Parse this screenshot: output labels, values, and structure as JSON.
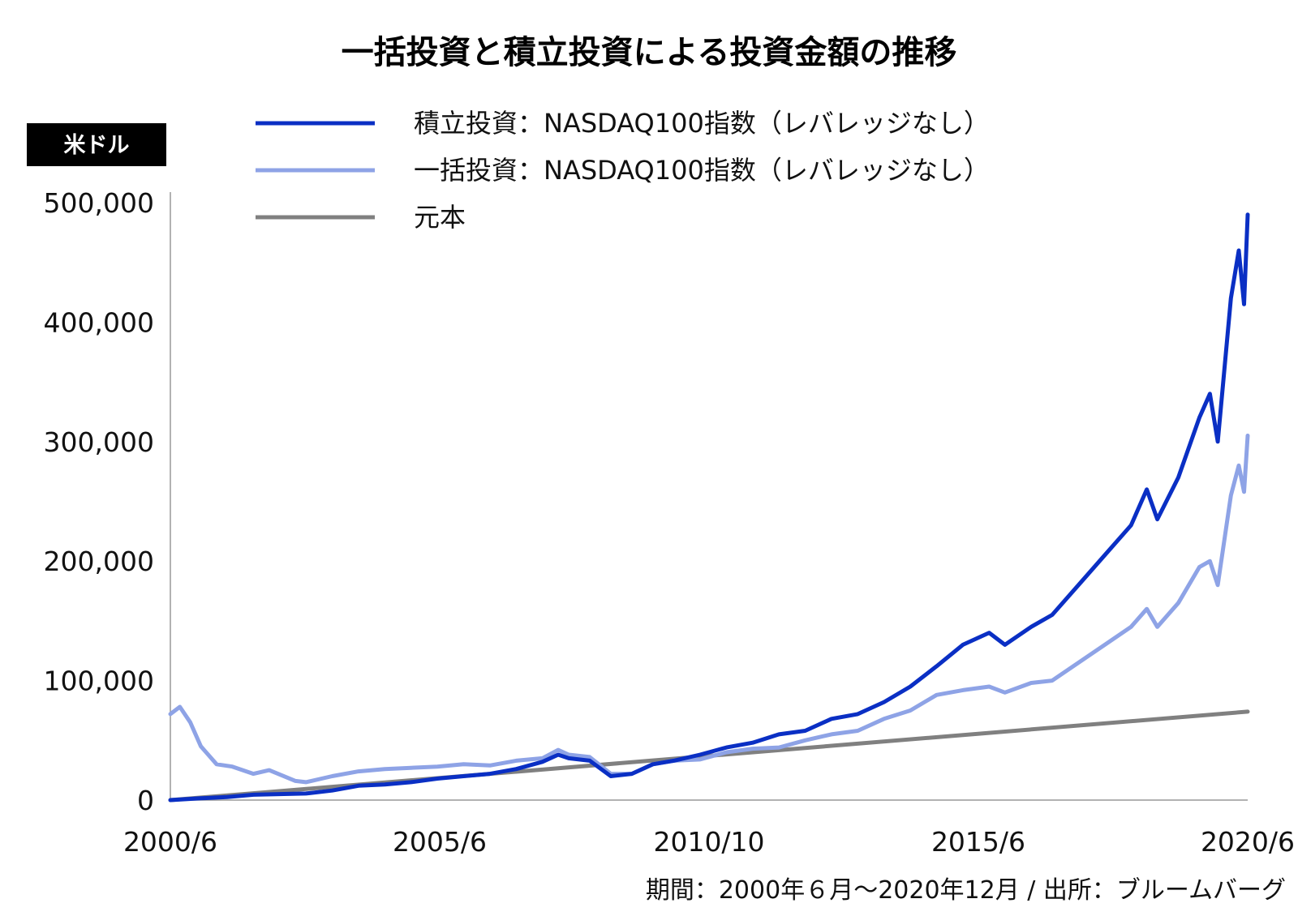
{
  "chart_data": {
    "type": "line",
    "title": "一括投資と積立投資による投資金額の推移",
    "unit_label": "米ドル",
    "source": "期間：2000年６月〜2020年12月 / 出所：ブルームバーグ",
    "x_tick_labels": [
      "2000/6",
      "2005/6",
      "2010/10",
      "2015/6",
      "2020/6"
    ],
    "y_tick_labels": [
      "500,000",
      "400,000",
      "300,000",
      "200,000",
      "100,000",
      "0"
    ],
    "x_range": [
      2000.42,
      2020.92
    ],
    "ylim": [
      0,
      500000
    ],
    "legend_position": "top",
    "series": [
      {
        "name": "積立投資：NASDAQ100指数（レバレッジなし）",
        "color": "#0a2fc4",
        "points": [
          [
            2000.42,
            0
          ],
          [
            2001.0,
            1500
          ],
          [
            2001.5,
            2500
          ],
          [
            2002.0,
            4500
          ],
          [
            2002.5,
            5000
          ],
          [
            2003.0,
            5500
          ],
          [
            2003.5,
            8000
          ],
          [
            2004.0,
            12000
          ],
          [
            2004.5,
            13000
          ],
          [
            2005.0,
            15000
          ],
          [
            2005.5,
            18000
          ],
          [
            2006.0,
            20000
          ],
          [
            2006.5,
            22000
          ],
          [
            2007.0,
            26000
          ],
          [
            2007.5,
            32000
          ],
          [
            2007.8,
            38000
          ],
          [
            2008.0,
            35000
          ],
          [
            2008.4,
            33000
          ],
          [
            2008.8,
            20000
          ],
          [
            2009.2,
            22000
          ],
          [
            2009.6,
            30000
          ],
          [
            2010.0,
            33000
          ],
          [
            2010.5,
            38000
          ],
          [
            2011.0,
            44000
          ],
          [
            2011.5,
            48000
          ],
          [
            2012.0,
            55000
          ],
          [
            2012.5,
            58000
          ],
          [
            2013.0,
            68000
          ],
          [
            2013.5,
            72000
          ],
          [
            2014.0,
            82000
          ],
          [
            2014.5,
            95000
          ],
          [
            2015.0,
            112000
          ],
          [
            2015.5,
            130000
          ],
          [
            2016.0,
            140000
          ],
          [
            2016.3,
            130000
          ],
          [
            2016.8,
            145000
          ],
          [
            2017.2,
            155000
          ],
          [
            2017.8,
            185000
          ],
          [
            2018.2,
            205000
          ],
          [
            2018.7,
            230000
          ],
          [
            2019.0,
            260000
          ],
          [
            2019.2,
            235000
          ],
          [
            2019.6,
            270000
          ],
          [
            2020.0,
            320000
          ],
          [
            2020.2,
            340000
          ],
          [
            2020.35,
            300000
          ],
          [
            2020.6,
            420000
          ],
          [
            2020.75,
            460000
          ],
          [
            2020.85,
            415000
          ],
          [
            2020.92,
            490000
          ]
        ]
      },
      {
        "name": "一括投資：NASDAQ100指数（レバレッジなし）",
        "color": "#8ea3e6",
        "points": [
          [
            2000.42,
            72000
          ],
          [
            2000.6,
            78000
          ],
          [
            2000.8,
            65000
          ],
          [
            2001.0,
            45000
          ],
          [
            2001.3,
            30000
          ],
          [
            2001.6,
            28000
          ],
          [
            2002.0,
            22000
          ],
          [
            2002.3,
            25000
          ],
          [
            2002.8,
            16000
          ],
          [
            2003.0,
            15000
          ],
          [
            2003.5,
            20000
          ],
          [
            2004.0,
            24000
          ],
          [
            2004.5,
            26000
          ],
          [
            2005.0,
            27000
          ],
          [
            2005.5,
            28000
          ],
          [
            2006.0,
            30000
          ],
          [
            2006.5,
            29000
          ],
          [
            2007.0,
            33000
          ],
          [
            2007.5,
            35000
          ],
          [
            2007.8,
            42000
          ],
          [
            2008.0,
            38000
          ],
          [
            2008.4,
            36000
          ],
          [
            2008.8,
            22000
          ],
          [
            2009.2,
            22000
          ],
          [
            2009.6,
            30000
          ],
          [
            2010.0,
            33000
          ],
          [
            2010.5,
            34000
          ],
          [
            2011.0,
            40000
          ],
          [
            2011.5,
            43000
          ],
          [
            2012.0,
            44000
          ],
          [
            2012.5,
            50000
          ],
          [
            2013.0,
            55000
          ],
          [
            2013.5,
            58000
          ],
          [
            2014.0,
            68000
          ],
          [
            2014.5,
            75000
          ],
          [
            2015.0,
            88000
          ],
          [
            2015.5,
            92000
          ],
          [
            2016.0,
            95000
          ],
          [
            2016.3,
            90000
          ],
          [
            2016.8,
            98000
          ],
          [
            2017.2,
            100000
          ],
          [
            2017.8,
            118000
          ],
          [
            2018.2,
            130000
          ],
          [
            2018.7,
            145000
          ],
          [
            2019.0,
            160000
          ],
          [
            2019.2,
            145000
          ],
          [
            2019.6,
            165000
          ],
          [
            2020.0,
            195000
          ],
          [
            2020.2,
            200000
          ],
          [
            2020.35,
            180000
          ],
          [
            2020.6,
            255000
          ],
          [
            2020.75,
            280000
          ],
          [
            2020.85,
            258000
          ],
          [
            2020.92,
            305000
          ]
        ]
      },
      {
        "name": "元本",
        "color": "#808080",
        "points": [
          [
            2000.42,
            0
          ],
          [
            2020.92,
            74000
          ]
        ]
      }
    ]
  }
}
